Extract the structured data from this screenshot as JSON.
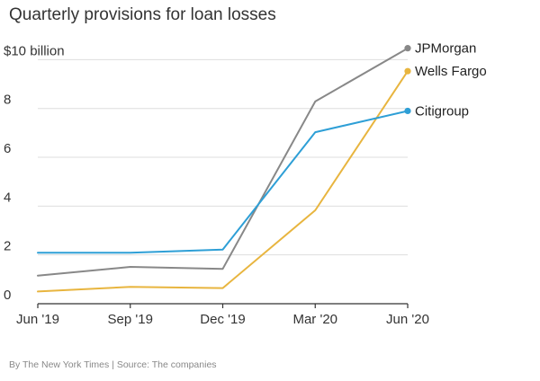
{
  "chart_data": {
    "type": "line",
    "title": "Quarterly provisions for loan losses",
    "categories": [
      "Jun '19",
      "Sep '19",
      "Dec '19",
      "Mar '20",
      "Jun '20"
    ],
    "y_ticks": [
      {
        "value": 0,
        "label": "0"
      },
      {
        "value": 2,
        "label": "2"
      },
      {
        "value": 4,
        "label": "4"
      },
      {
        "value": 6,
        "label": "6"
      },
      {
        "value": 8,
        "label": "8"
      },
      {
        "value": 10,
        "label": "$10 billion"
      }
    ],
    "ylim": [
      0,
      10.8
    ],
    "grid": "horizontal",
    "series": [
      {
        "name": "JPMorgan",
        "color": "#888888",
        "values": [
          1.15,
          1.51,
          1.43,
          8.29,
          10.47
        ]
      },
      {
        "name": "Wells Fargo",
        "color": "#e8b53f",
        "values": [
          0.5,
          0.69,
          0.64,
          3.83,
          9.53
        ]
      },
      {
        "name": "Citigroup",
        "color": "#2e9fd6",
        "values": [
          2.09,
          2.09,
          2.22,
          7.03,
          7.9
        ]
      }
    ]
  },
  "source": "By The New York Times | Source: The companies"
}
